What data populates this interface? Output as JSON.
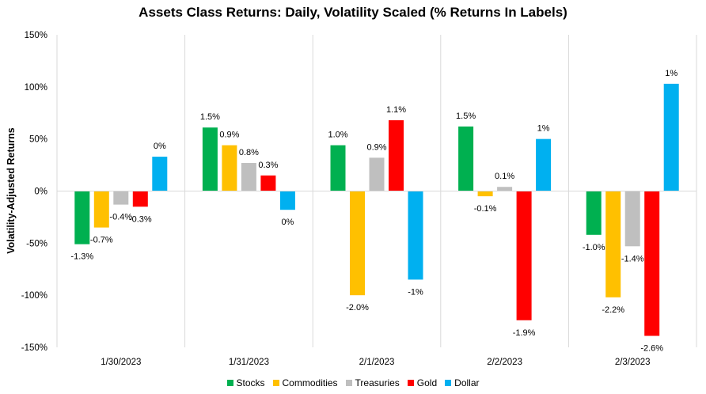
{
  "chart_data": {
    "type": "bar",
    "title": "Assets Class Returns: Daily, Volatility Scaled (% Returns In Labels)",
    "xlabel": "",
    "ylabel": "Volatility-Adjusted Returns",
    "ylim": [
      -150,
      150
    ],
    "yticks": [
      -150,
      -100,
      -50,
      0,
      50,
      100,
      150
    ],
    "ytick_labels": [
      "-150%",
      "-100%",
      "-50%",
      "0%",
      "50%",
      "100%",
      "150%"
    ],
    "categories": [
      "1/30/2023",
      "1/31/2023",
      "2/1/2023",
      "2/2/2023",
      "2/3/2023"
    ],
    "grid": "vertical separators between categories",
    "legend": "bottom",
    "series": [
      {
        "name": "Stocks",
        "color": "#00b050",
        "values": [
          -51,
          61,
          44,
          62,
          -42
        ],
        "labels": [
          "-1.3%",
          "1.5%",
          "1.0%",
          "1.5%",
          "-1.0%"
        ]
      },
      {
        "name": "Commodities",
        "color": "#ffc000",
        "values": [
          -35,
          44,
          -100,
          -5,
          -102
        ],
        "labels": [
          "-0.7%",
          "0.9%",
          "-2.0%",
          "-0.1%",
          "-2.2%"
        ]
      },
      {
        "name": "Treasuries",
        "color": "#bfbfbf",
        "values": [
          -13,
          27,
          32,
          4,
          -53
        ],
        "labels": [
          "-0.4%",
          "0.8%",
          "0.9%",
          "0.1%",
          "-1.4%"
        ]
      },
      {
        "name": "Gold",
        "color": "#ff0000",
        "values": [
          -15,
          15,
          68,
          -124,
          -139
        ],
        "labels": [
          "-0.3%",
          "0.3%",
          "1.1%",
          "-1.9%",
          "-2.6%"
        ]
      },
      {
        "name": "Dollar",
        "color": "#00b0f0",
        "values": [
          33,
          -18,
          -85,
          50,
          103
        ],
        "labels": [
          "0%",
          "0%",
          "-1%",
          "1%",
          "1%"
        ]
      }
    ]
  }
}
